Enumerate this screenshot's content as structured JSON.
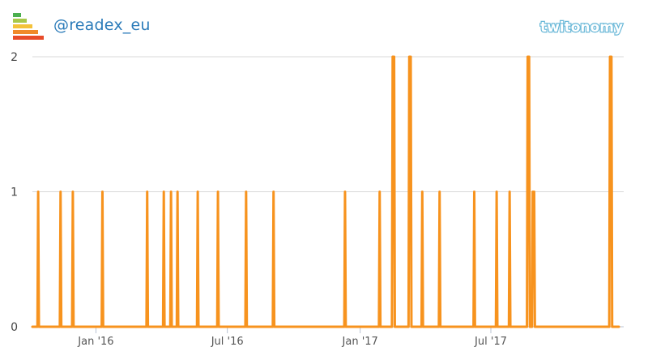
{
  "header": {
    "handle": "@readex_eu",
    "brand": "twitonomy",
    "brand_color": "#6ab8d8",
    "handle_color": "#2b7bb9",
    "icon": "signal-bars-icon"
  },
  "chart_data": {
    "type": "line",
    "series": [
      {
        "color": "#f7931e",
        "points": [
          [
            "2015-10-12",
            0
          ],
          [
            "2015-10-13",
            1
          ],
          [
            "2015-10-14",
            0
          ],
          [
            "2015-11-12",
            0
          ],
          [
            "2015-11-13",
            1
          ],
          [
            "2015-11-14",
            0
          ],
          [
            "2015-11-29",
            0
          ],
          [
            "2015-11-30",
            1
          ],
          [
            "2015-12-01",
            0
          ],
          [
            "2016-01-09",
            0
          ],
          [
            "2016-01-10",
            1
          ],
          [
            "2016-01-11",
            0
          ],
          [
            "2016-03-11",
            0
          ],
          [
            "2016-03-12",
            1
          ],
          [
            "2016-03-13",
            0
          ],
          [
            "2016-04-03",
            0
          ],
          [
            "2016-04-04",
            1
          ],
          [
            "2016-04-05",
            0
          ],
          [
            "2016-04-13",
            0
          ],
          [
            "2016-04-14",
            1
          ],
          [
            "2016-04-15",
            0
          ],
          [
            "2016-04-22",
            0
          ],
          [
            "2016-04-23",
            1
          ],
          [
            "2016-04-24",
            0
          ],
          [
            "2016-05-20",
            0
          ],
          [
            "2016-05-21",
            1
          ],
          [
            "2016-05-22",
            0
          ],
          [
            "2016-06-17",
            0
          ],
          [
            "2016-06-18",
            1
          ],
          [
            "2016-06-19",
            0
          ],
          [
            "2016-07-26",
            0
          ],
          [
            "2016-07-27",
            1
          ],
          [
            "2016-07-28",
            0
          ],
          [
            "2016-09-02",
            0
          ],
          [
            "2016-09-03",
            1
          ],
          [
            "2016-09-04",
            0
          ],
          [
            "2016-12-10",
            0
          ],
          [
            "2016-12-11",
            1
          ],
          [
            "2016-12-12",
            0
          ],
          [
            "2017-01-27",
            0
          ],
          [
            "2017-01-28",
            1
          ],
          [
            "2017-01-29",
            0
          ],
          [
            "2017-02-14",
            0
          ],
          [
            "2017-02-15",
            2
          ],
          [
            "2017-02-17",
            2
          ],
          [
            "2017-02-18",
            0
          ],
          [
            "2017-03-09",
            0
          ],
          [
            "2017-03-10",
            2
          ],
          [
            "2017-03-12",
            2
          ],
          [
            "2017-03-13",
            0
          ],
          [
            "2017-03-27",
            0
          ],
          [
            "2017-03-28",
            1
          ],
          [
            "2017-03-29",
            0
          ],
          [
            "2017-04-20",
            0
          ],
          [
            "2017-04-21",
            1
          ],
          [
            "2017-04-22",
            0
          ],
          [
            "2017-06-07",
            0
          ],
          [
            "2017-06-08",
            1
          ],
          [
            "2017-06-09",
            0
          ],
          [
            "2017-07-08",
            0
          ],
          [
            "2017-07-09",
            1
          ],
          [
            "2017-07-10",
            0
          ],
          [
            "2017-07-26",
            0
          ],
          [
            "2017-07-27",
            1
          ],
          [
            "2017-07-28",
            0
          ],
          [
            "2017-08-20",
            0
          ],
          [
            "2017-08-21",
            2
          ],
          [
            "2017-08-23",
            2
          ],
          [
            "2017-08-24",
            0
          ],
          [
            "2017-08-27",
            0
          ],
          [
            "2017-08-28",
            1
          ],
          [
            "2017-08-30",
            1
          ],
          [
            "2017-08-31",
            0
          ],
          [
            "2017-12-12",
            0
          ],
          [
            "2017-12-13",
            2
          ],
          [
            "2017-12-15",
            2
          ],
          [
            "2017-12-16",
            0
          ]
        ]
      }
    ],
    "xlim": [
      "2015-10-05",
      "2018-01-01"
    ],
    "ylim": [
      0,
      2
    ],
    "y_ticks": [
      "0",
      "1",
      "2"
    ],
    "x_ticks": [
      {
        "date": "2016-01-01",
        "label": "Jan '16"
      },
      {
        "date": "2016-07-01",
        "label": "Jul '16"
      },
      {
        "date": "2017-01-01",
        "label": "Jan '17"
      },
      {
        "date": "2017-07-01",
        "label": "Jul '17"
      }
    ],
    "grid": true,
    "title": "",
    "xlabel": "",
    "ylabel": ""
  }
}
